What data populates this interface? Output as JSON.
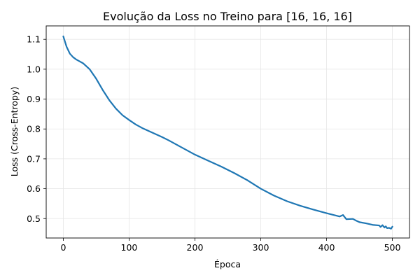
{
  "chart_data": {
    "type": "line",
    "title": "Evolução da Loss no Treino para [16, 16, 16]",
    "xlabel": "Época",
    "ylabel": "Loss (Cross-Entropy)",
    "xlim": [
      -26,
      526
    ],
    "ylim": [
      0.435,
      1.145
    ],
    "x_ticks": [
      0,
      100,
      200,
      300,
      400,
      500
    ],
    "y_ticks": [
      0.5,
      0.6,
      0.7,
      0.8,
      0.9,
      1.0,
      1.1
    ],
    "x_tick_labels": [
      "0",
      "100",
      "200",
      "300",
      "400",
      "500"
    ],
    "y_tick_labels": [
      "0.5",
      "0.6",
      "0.7",
      "0.8",
      "0.9",
      "1.0",
      "1.1"
    ],
    "grid": true,
    "legend": "none",
    "series": [
      {
        "color": "#1f77b4",
        "x": [
          0,
          5,
          10,
          15,
          20,
          30,
          40,
          50,
          60,
          70,
          80,
          90,
          100,
          110,
          120,
          130,
          140,
          150,
          160,
          170,
          180,
          190,
          200,
          220,
          240,
          260,
          280,
          300,
          320,
          340,
          360,
          380,
          400,
          420,
          425,
          430,
          440,
          445,
          450,
          460,
          470,
          480,
          482,
          485,
          488,
          490,
          492,
          495,
          498,
          500
        ],
        "y": [
          1.11,
          1.075,
          1.052,
          1.04,
          1.032,
          1.02,
          1.0,
          0.968,
          0.93,
          0.896,
          0.868,
          0.846,
          0.83,
          0.815,
          0.803,
          0.793,
          0.783,
          0.773,
          0.762,
          0.75,
          0.738,
          0.726,
          0.714,
          0.694,
          0.674,
          0.652,
          0.628,
          0.6,
          0.577,
          0.558,
          0.543,
          0.53,
          0.518,
          0.507,
          0.512,
          0.498,
          0.499,
          0.493,
          0.488,
          0.484,
          0.479,
          0.477,
          0.472,
          0.478,
          0.47,
          0.474,
          0.468,
          0.469,
          0.466,
          0.473
        ]
      }
    ]
  }
}
